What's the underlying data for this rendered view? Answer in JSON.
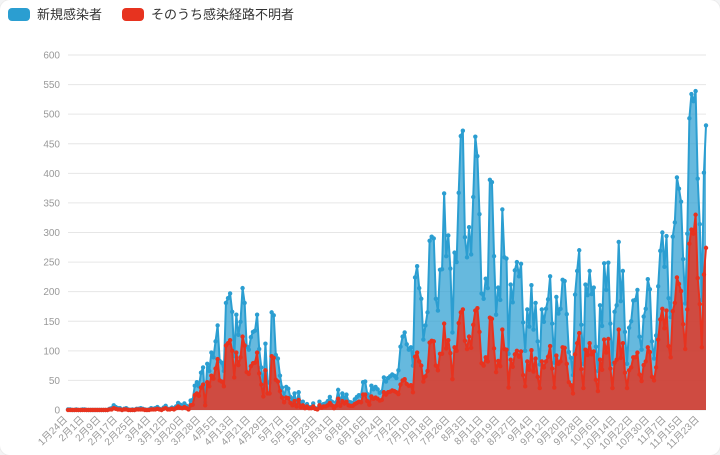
{
  "legend": {
    "items": [
      {
        "label": "新規感染者",
        "color": "#2b9ed1"
      },
      {
        "label": "そのうち感染経路不明者",
        "color": "#e7331f"
      }
    ]
  },
  "chart_data": {
    "type": "area",
    "title": "",
    "xlabel": "",
    "ylabel": "",
    "ylim": [
      0,
      600
    ],
    "y_tick_step": 50,
    "grid": true,
    "legend_position": "top-left",
    "x_tick_every": 8,
    "x_tick_labels": [
      "1月24日",
      "2月1日",
      "2月9日",
      "2月17日",
      "2月25日",
      "3月4日",
      "3月12日",
      "3月20日",
      "3月28日",
      "4月5日",
      "4月13日",
      "4月21日",
      "4月29日",
      "5月7日",
      "5月15日",
      "5月23日",
      "5月31日",
      "6月8日",
      "6月16日",
      "6月24日",
      "7月2日",
      "7月10日",
      "7月18日",
      "7月26日",
      "8月3日",
      "8月11日",
      "8月19日",
      "8月27日",
      "9月4日",
      "9月12日",
      "9月20日",
      "9月28日",
      "10月6日",
      "10月14日",
      "10月22日",
      "10月30日",
      "11月7日",
      "11月15日",
      "11月23日"
    ],
    "series": [
      {
        "name": "新規感染者",
        "color": "#2b9ed1",
        "fill": "rgba(43,158,209,0.72)",
        "values": [
          1,
          1,
          0,
          0,
          1,
          0,
          0,
          1,
          1,
          0,
          0,
          0,
          0,
          0,
          0,
          0,
          0,
          0,
          0,
          0,
          2,
          3,
          8,
          5,
          3,
          3,
          0,
          2,
          3,
          1,
          0,
          1,
          0,
          2,
          2,
          3,
          2,
          1,
          0,
          1,
          3,
          2,
          3,
          5,
          2,
          1,
          4,
          7,
          2,
          2,
          4,
          3,
          6,
          12,
          9,
          7,
          11,
          7,
          3,
          16,
          17,
          41,
          47,
          40,
          63,
          72,
          13,
          78,
          66,
          97,
          89,
          116,
          143,
          83,
          80,
          66,
          181,
          189,
          197,
          166,
          91,
          161,
          127,
          149,
          206,
          181,
          107,
          102,
          123,
          132,
          134,
          161,
          103,
          72,
          39,
          112,
          47,
          46,
          165,
          160,
          93,
          87,
          58,
          38,
          23,
          39,
          36,
          22,
          15,
          28,
          10,
          30,
          9,
          14,
          5,
          10,
          5,
          5,
          11,
          3,
          2,
          14,
          8,
          10,
          11,
          15,
          22,
          14,
          5,
          13,
          34,
          12,
          28,
          20,
          26,
          14,
          13,
          12,
          18,
          22,
          25,
          24,
          47,
          48,
          27,
          16,
          41,
          35,
          39,
          35,
          29,
          31,
          55,
          48,
          54,
          57,
          60,
          58,
          54,
          67,
          107,
          124,
          131,
          111,
          102,
          106,
          75,
          224,
          243,
          206,
          188,
          119,
          143,
          165,
          286,
          293,
          290,
          188,
          168,
          237,
          238,
          366,
          260,
          295,
          239,
          131,
          266,
          250,
          367,
          463,
          472,
          292,
          258,
          309,
          263,
          360,
          462,
          429,
          331,
          197,
          188,
          222,
          206,
          389,
          385,
          260,
          161,
          207,
          186,
          339,
          258,
          256,
          95,
          212,
          182,
          236,
          250,
          226,
          247,
          148,
          100,
          170,
          141,
          211,
          136,
          181,
          116,
          77,
          170,
          149,
          171,
          187,
          226,
          146,
          80,
          191,
          163,
          171,
          220,
          218,
          162,
          98,
          88,
          59,
          195,
          235,
          270,
          144,
          78,
          212,
          194,
          235,
          196,
          207,
          107,
          66,
          177,
          142,
          248,
          203,
          249,
          146,
          78,
          166,
          177,
          284,
          184,
          235,
          132,
          78,
          139,
          150,
          185,
          186,
          203,
          124,
          102,
          158,
          171,
          221,
          204,
          116,
          87,
          126,
          209,
          269,
          300,
          242,
          294,
          189,
          157,
          293,
          317,
          393,
          374,
          352,
          255,
          180,
          298,
          493,
          534,
          522,
          539,
          391,
          314,
          186,
          401,
          481
        ]
      },
      {
        "name": "そのうち感染経路不明者",
        "color": "#e7331f",
        "fill": "rgba(231,51,31,0.82)",
        "values": [
          0,
          0,
          0,
          0,
          0,
          0,
          0,
          0,
          0,
          0,
          0,
          0,
          0,
          0,
          0,
          0,
          0,
          0,
          0,
          0,
          1,
          1,
          3,
          2,
          1,
          1,
          0,
          1,
          1,
          0,
          0,
          0,
          0,
          1,
          1,
          1,
          1,
          0,
          0,
          0,
          1,
          1,
          1,
          2,
          1,
          0,
          2,
          3,
          1,
          1,
          2,
          1,
          3,
          6,
          4,
          3,
          5,
          3,
          1,
          8,
          9,
          25,
          28,
          24,
          38,
          43,
          8,
          47,
          40,
          58,
          53,
          70,
          86,
          50,
          48,
          40,
          109,
          113,
          118,
          100,
          55,
          97,
          76,
          89,
          124,
          109,
          64,
          61,
          74,
          79,
          80,
          97,
          62,
          43,
          23,
          67,
          28,
          28,
          91,
          88,
          51,
          48,
          32,
          21,
          13,
          21,
          20,
          12,
          8,
          15,
          6,
          17,
          5,
          8,
          3,
          6,
          3,
          3,
          6,
          2,
          1,
          8,
          4,
          6,
          6,
          8,
          12,
          8,
          3,
          7,
          19,
          7,
          15,
          11,
          14,
          8,
          7,
          7,
          10,
          12,
          14,
          13,
          26,
          26,
          15,
          9,
          23,
          19,
          21,
          19,
          16,
          17,
          30,
          26,
          30,
          31,
          33,
          32,
          30,
          27,
          43,
          50,
          52,
          44,
          41,
          42,
          30,
          90,
          97,
          82,
          75,
          48,
          57,
          66,
          114,
          117,
          116,
          75,
          67,
          95,
          95,
          146,
          104,
          118,
          96,
          52,
          106,
          100,
          147,
          165,
          170,
          117,
          103,
          124,
          105,
          144,
          168,
          172,
          132,
          79,
          75,
          89,
          82,
          156,
          154,
          104,
          64,
          83,
          74,
          136,
          103,
          102,
          38,
          85,
          73,
          94,
          100,
          90,
          99,
          59,
          40,
          82,
          68,
          101,
          65,
          87,
          56,
          37,
          82,
          72,
          82,
          90,
          108,
          70,
          38,
          92,
          78,
          82,
          106,
          105,
          78,
          47,
          42,
          28,
          94,
          113,
          130,
          69,
          37,
          102,
          93,
          113,
          94,
          99,
          51,
          32,
          85,
          68,
          119,
          97,
          120,
          70,
          37,
          80,
          85,
          136,
          88,
          113,
          63,
          37,
          67,
          72,
          89,
          89,
          97,
          60,
          49,
          76,
          82,
          106,
          98,
          56,
          50,
          72,
          119,
          153,
          171,
          138,
          168,
          108,
          89,
          167,
          181,
          224,
          213,
          201,
          145,
          103,
          170,
          281,
          305,
          298,
          330,
          223,
          179,
          106,
          229,
          274
        ]
      }
    ],
    "style": {
      "grid_color": "#e6e6e6",
      "axis_label_color": "#999999",
      "background": "#ffffff"
    }
  }
}
